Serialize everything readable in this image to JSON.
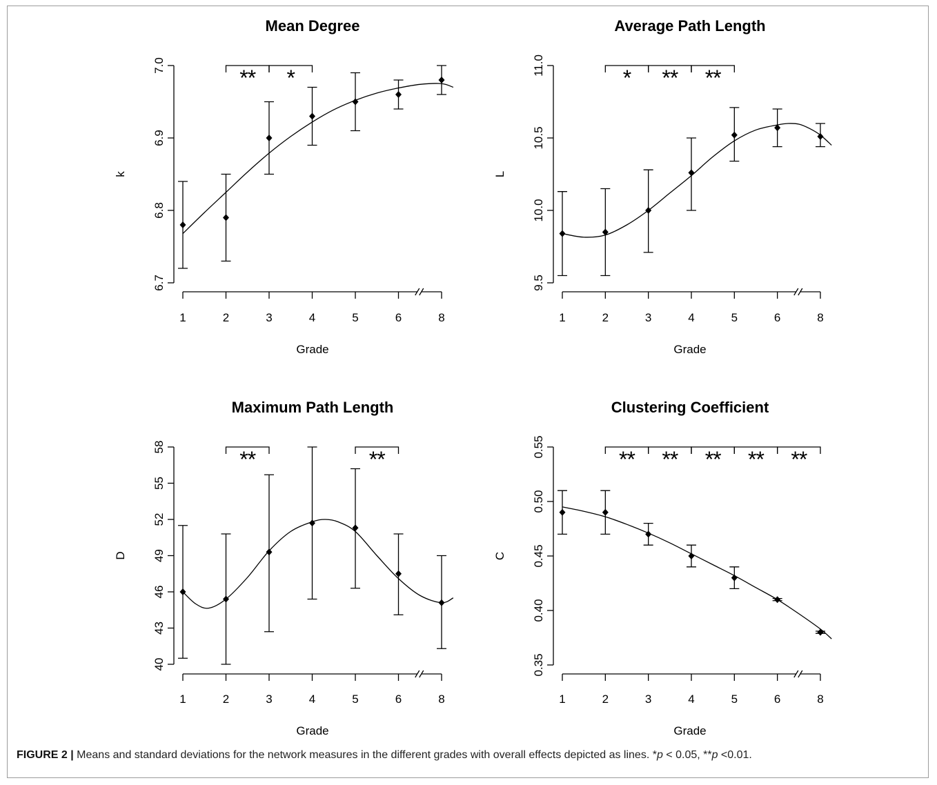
{
  "colors": {
    "ink": "#000000",
    "frame": "#9b9b9b"
  },
  "caption": {
    "label": "FIGURE 2 |",
    "text": "Means and standard deviations for the network measures in the different grades with overall effects depicted as lines. *",
    "p1": "p",
    "text2": " < 0.05, **",
    "p2": "p",
    "text3": " <0.01."
  },
  "chart_data": [
    {
      "type": "scatter",
      "title": "Mean Degree",
      "xlabel": "Grade",
      "ylabel": "k",
      "x_ticks": [
        "1",
        "2",
        "3",
        "4",
        "5",
        "6",
        "8"
      ],
      "x": [
        1,
        2,
        3,
        4,
        5,
        6,
        8
      ],
      "x_axis_break": [
        6,
        8
      ],
      "ylim": [
        6.7,
        7.0
      ],
      "y_ticks": [
        "6.7",
        "6.8",
        "6.9",
        "7.0"
      ],
      "means": [
        6.78,
        6.79,
        6.9,
        6.93,
        6.95,
        6.96,
        6.98
      ],
      "sd_lower": [
        6.72,
        6.73,
        6.85,
        6.89,
        6.91,
        6.94,
        6.96
      ],
      "sd_upper": [
        6.84,
        6.85,
        6.95,
        6.97,
        6.99,
        6.98,
        7.0
      ],
      "fit": {
        "x": [
          1,
          1.5,
          2,
          2.5,
          3,
          3.5,
          4,
          4.5,
          5,
          5.5,
          6,
          7,
          8,
          8.54
        ],
        "y": [
          6.768,
          6.797,
          6.825,
          6.853,
          6.879,
          6.902,
          6.922,
          6.939,
          6.952,
          6.962,
          6.969,
          6.974,
          6.975,
          6.97
        ]
      },
      "significance": [
        {
          "from": 2,
          "to": 3,
          "label": "**"
        },
        {
          "from": 3,
          "to": 4,
          "label": "*"
        }
      ]
    },
    {
      "type": "scatter",
      "title": "Average Path Length",
      "xlabel": "Grade",
      "ylabel": "L",
      "x_ticks": [
        "1",
        "2",
        "3",
        "4",
        "5",
        "6",
        "8"
      ],
      "x": [
        1,
        2,
        3,
        4,
        5,
        6,
        8
      ],
      "x_axis_break": [
        6,
        8
      ],
      "ylim": [
        9.5,
        11.0
      ],
      "y_ticks": [
        "9.5",
        "10.0",
        "10.5",
        "11.0"
      ],
      "means": [
        9.84,
        9.85,
        10.0,
        10.26,
        10.52,
        10.57,
        10.51
      ],
      "sd_lower": [
        9.55,
        9.55,
        9.71,
        10.0,
        10.34,
        10.44,
        10.44
      ],
      "sd_upper": [
        10.13,
        10.15,
        10.28,
        10.5,
        10.71,
        10.7,
        10.6
      ],
      "fit": {
        "x": [
          1,
          1.5,
          2,
          2.5,
          3,
          3.5,
          4,
          4.5,
          5,
          5.5,
          6,
          6.5,
          7,
          7.5,
          8,
          8.52
        ],
        "y": [
          9.84,
          9.815,
          9.83,
          9.9,
          10.0,
          10.12,
          10.24,
          10.37,
          10.48,
          10.555,
          10.59,
          10.6,
          10.595,
          10.565,
          10.52,
          10.45
        ]
      },
      "significance": [
        {
          "from": 2,
          "to": 3,
          "label": "*"
        },
        {
          "from": 3,
          "to": 4,
          "label": "**"
        },
        {
          "from": 4,
          "to": 5,
          "label": "**"
        }
      ]
    },
    {
      "type": "scatter",
      "title": "Maximum Path Length",
      "xlabel": "Grade",
      "ylabel": "D",
      "x_ticks": [
        "1",
        "2",
        "3",
        "4",
        "5",
        "6",
        "8"
      ],
      "x": [
        1,
        2,
        3,
        4,
        5,
        6,
        8
      ],
      "x_axis_break": [
        6,
        8
      ],
      "ylim": [
        40,
        58
      ],
      "y_ticks": [
        "40",
        "43",
        "46",
        "49",
        "52",
        "55",
        "58"
      ],
      "means": [
        46.0,
        45.4,
        49.3,
        51.7,
        51.3,
        47.5,
        45.1
      ],
      "sd_lower": [
        40.5,
        40.0,
        42.7,
        45.4,
        46.3,
        44.1,
        41.3
      ],
      "sd_upper": [
        51.5,
        50.8,
        55.7,
        58.0,
        56.2,
        50.8,
        49.0
      ],
      "fit": {
        "x": [
          1,
          1.3,
          1.6,
          2,
          2.5,
          3,
          3.5,
          4,
          4.3,
          4.6,
          5,
          5.5,
          6,
          7,
          8,
          8.54
        ],
        "y": [
          46.0,
          45.0,
          44.65,
          45.4,
          47.2,
          49.4,
          51.0,
          51.8,
          52.0,
          51.8,
          51.0,
          49.0,
          47.1,
          45.7,
          45.1,
          45.5
        ]
      },
      "significance": [
        {
          "from": 2,
          "to": 3,
          "label": "**"
        },
        {
          "from": 5,
          "to": 6,
          "label": "**"
        }
      ]
    },
    {
      "type": "scatter",
      "title": "Clustering Coefficient",
      "xlabel": "Grade",
      "ylabel": "C",
      "x_ticks": [
        "1",
        "2",
        "3",
        "4",
        "5",
        "6",
        "8"
      ],
      "x": [
        1,
        2,
        3,
        4,
        5,
        6,
        8
      ],
      "x_axis_break": [
        6,
        8
      ],
      "ylim": [
        0.35,
        0.55
      ],
      "y_ticks": [
        "0.35",
        "0.40",
        "0.45",
        "0.50",
        "0.55"
      ],
      "means": [
        0.49,
        0.49,
        0.47,
        0.45,
        0.43,
        0.41,
        0.38
      ],
      "sd_lower": [
        0.47,
        0.47,
        0.46,
        0.44,
        0.42,
        0.409,
        0.379
      ],
      "sd_upper": [
        0.51,
        0.51,
        0.48,
        0.46,
        0.44,
        0.411,
        0.381
      ],
      "fit": {
        "x": [
          1,
          1.5,
          2,
          2.5,
          3,
          3.5,
          4,
          4.5,
          5,
          5.5,
          6,
          7,
          8,
          8.52
        ],
        "y": [
          0.495,
          0.491,
          0.486,
          0.479,
          0.471,
          0.462,
          0.452,
          0.442,
          0.432,
          0.421,
          0.41,
          0.397,
          0.383,
          0.374
        ]
      },
      "significance": [
        {
          "from": 2,
          "to": 3,
          "label": "**"
        },
        {
          "from": 3,
          "to": 4,
          "label": "**"
        },
        {
          "from": 4,
          "to": 5,
          "label": "**"
        },
        {
          "from": 5,
          "to": 6,
          "label": "**"
        },
        {
          "from": 6,
          "to": 8,
          "label": "**"
        }
      ]
    }
  ]
}
